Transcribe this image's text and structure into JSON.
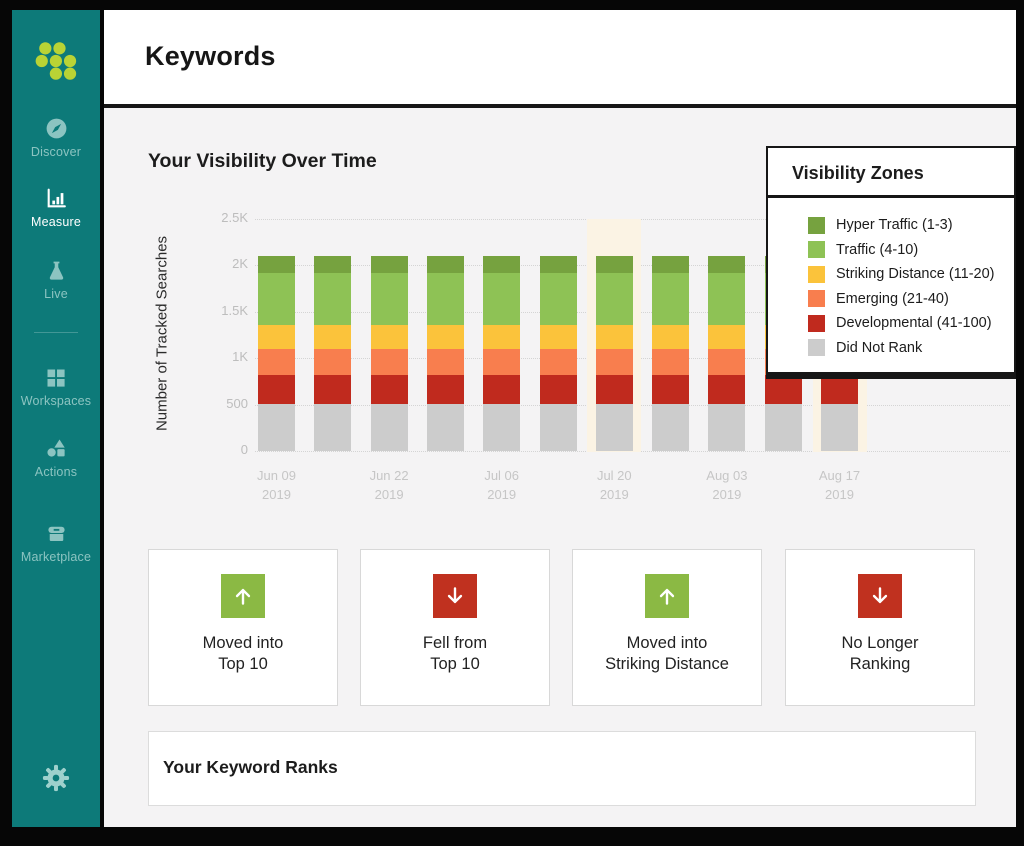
{
  "sidebar": {
    "items": [
      {
        "id": "discover",
        "label": "Discover",
        "icon": "compass-icon",
        "active": false
      },
      {
        "id": "measure",
        "label": "Measure",
        "icon": "bar-chart-icon",
        "active": true
      },
      {
        "id": "live",
        "label": "Live",
        "icon": "flask-icon",
        "active": false
      },
      {
        "id": "workspaces",
        "label": "Workspaces",
        "icon": "grid-icon",
        "active": false
      },
      {
        "id": "actions",
        "label": "Actions",
        "icon": "shapes-icon",
        "active": false
      },
      {
        "id": "marketplace",
        "label": "Marketplace",
        "icon": "storefront-icon",
        "active": false
      }
    ],
    "colors": {
      "background": "#0d7a79",
      "logo_dots": "#b9d335",
      "inactive_item": "#8cc4c1",
      "active_item": "#ffffff"
    }
  },
  "header": {
    "title": "Keywords"
  },
  "visibility_section": {
    "title": "Your Visibility Over Time"
  },
  "legend": {
    "title": "Visibility Zones",
    "items": [
      {
        "label": "Hyper Traffic (1-3)",
        "color": "#76a23f"
      },
      {
        "label": "Traffic (4-10)",
        "color": "#8ec255"
      },
      {
        "label": "Striking Distance (11-20)",
        "color": "#fbc33b"
      },
      {
        "label": "Emerging (21-40)",
        "color": "#f87e4e"
      },
      {
        "label": "Developmental (41-100)",
        "color": "#c02a1e"
      },
      {
        "label": "Did Not Rank",
        "color": "#cccccc"
      }
    ]
  },
  "cards": [
    {
      "direction": "up",
      "color": "#8bb944",
      "label_line1": "Moved into",
      "label_line2": "Top 10"
    },
    {
      "direction": "down",
      "color": "#c0311f",
      "label_line1": "Fell from",
      "label_line2": "Top 10"
    },
    {
      "direction": "up",
      "color": "#8bb944",
      "label_line1": "Moved into",
      "label_line2": "Striking Distance"
    },
    {
      "direction": "down",
      "color": "#c0311f",
      "label_line1": "No Longer",
      "label_line2": "Ranking"
    }
  ],
  "keyword_ranks": {
    "title": "Your Keyword Ranks"
  },
  "chart_data": {
    "type": "bar",
    "stacked": true,
    "title": "Your Visibility Over Time",
    "ylabel": "Number of Tracked Searches",
    "ylim": [
      0,
      2500
    ],
    "yticks": [
      "2.5K",
      "2K",
      "1.5K",
      "1K",
      "500",
      "0"
    ],
    "ytick_values": [
      2500,
      2000,
      1500,
      1000,
      500,
      0
    ],
    "grid": "dotted-horizontal",
    "legend_position": "overlay-top-right",
    "bar_count": 11,
    "stack_order": "bottom-to-top",
    "series": [
      {
        "name": "Did Not Rank",
        "color": "#cccccc",
        "values": [
          505,
          505,
          505,
          505,
          505,
          505,
          505,
          505,
          505,
          505,
          505
        ]
      },
      {
        "name": "Developmental (41-100)",
        "color": "#c02a1e",
        "values": [
          310,
          310,
          310,
          310,
          310,
          310,
          310,
          310,
          310,
          310,
          310
        ]
      },
      {
        "name": "Emerging (21-40)",
        "color": "#f87e4e",
        "values": [
          285,
          285,
          285,
          285,
          285,
          285,
          285,
          285,
          285,
          285,
          285
        ]
      },
      {
        "name": "Striking Distance (11-20)",
        "color": "#fbc33b",
        "values": [
          250,
          250,
          250,
          250,
          250,
          250,
          250,
          250,
          250,
          250,
          250
        ]
      },
      {
        "name": "Traffic (4-10)",
        "color": "#8ec255",
        "values": [
          565,
          565,
          565,
          565,
          565,
          565,
          565,
          565,
          565,
          565,
          565
        ]
      },
      {
        "name": "Hyper Traffic (1-3)",
        "color": "#76a23f",
        "values": [
          185,
          185,
          185,
          185,
          185,
          185,
          185,
          185,
          185,
          185,
          185
        ]
      }
    ],
    "x_labels": [
      {
        "index": 0,
        "line1": "Jun 09",
        "line2": "2019"
      },
      {
        "index": 2,
        "line1": "Jun 22",
        "line2": "2019"
      },
      {
        "index": 4,
        "line1": "Jul 06",
        "line2": "2019"
      },
      {
        "index": 6,
        "line1": "Jul 20",
        "line2": "2019"
      },
      {
        "index": 8,
        "line1": "Aug 03",
        "line2": "2019"
      },
      {
        "index": 10,
        "line1": "Aug 17",
        "line2": "2019"
      }
    ],
    "highlighted_bars": [
      6,
      10
    ],
    "highlight_color": "#fbf3e4"
  }
}
